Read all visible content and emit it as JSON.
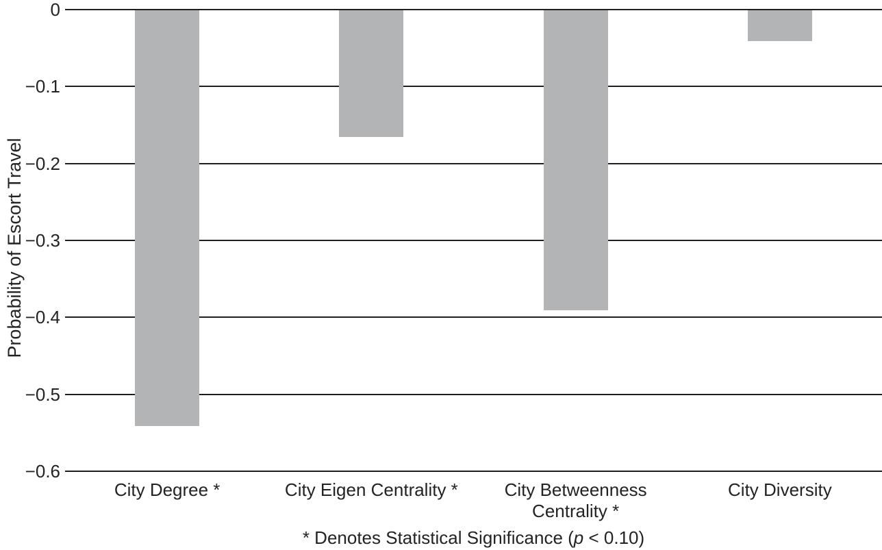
{
  "chart_data": {
    "type": "bar",
    "title": "",
    "categories": [
      "City Degree *",
      "City Eigen Centrality *",
      "City Betweenness\nCentrality *",
      "City Diversity"
    ],
    "values": [
      -0.54,
      -0.165,
      -0.39,
      -0.04
    ],
    "xlabel": "",
    "ylabel": "Probability of Escort Travel",
    "ylim": [
      -0.6,
      0
    ],
    "yticks": [
      {
        "value": 0,
        "label": "0"
      },
      {
        "value": -0.1,
        "label": "−0.1"
      },
      {
        "value": -0.2,
        "label": "−0.2"
      },
      {
        "value": -0.3,
        "label": "−0.3"
      },
      {
        "value": -0.4,
        "label": "−0.4"
      },
      {
        "value": -0.5,
        "label": "−0.5"
      },
      {
        "value": -0.6,
        "label": "−0.6"
      }
    ],
    "grid": "horizontal",
    "legend": "none",
    "bar_color": "#b3b4b6",
    "gridline_color": "#1f1f21",
    "text_color": "#232323",
    "note": {
      "prefix": "* Denotes Statistical Significance (",
      "italic": "p",
      "suffix": " < 0.10)"
    }
  }
}
